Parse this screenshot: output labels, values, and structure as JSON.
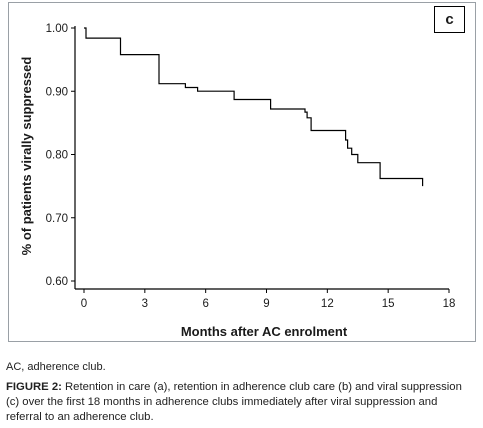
{
  "panel_label": "c",
  "footnote": "AC, adherence club.",
  "caption": {
    "label": "FIGURE 2:",
    "text": " Retention in care (a), retention in adherence club care (b) and viral suppression (c) over the first 18 months in adherence clubs immediately after viral suppression and referral to an adherence club."
  },
  "chart_data": {
    "type": "line",
    "subtype": "step",
    "xlabel": "Months after AC enrolment",
    "ylabel": "% of patients virally suppressed",
    "xlim": [
      0,
      18
    ],
    "ylim": [
      0.6,
      1.0
    ],
    "x_ticks": [
      0,
      3,
      6,
      9,
      12,
      15,
      18
    ],
    "y_ticks": [
      0.6,
      0.7,
      0.8,
      0.9,
      1.0
    ],
    "x_tick_labels": [
      "0",
      "3",
      "6",
      "9",
      "12",
      "15",
      "18"
    ],
    "y_tick_labels": [
      "0.60",
      "0.70",
      "0.80",
      "0.90",
      "1.00"
    ],
    "grid": false,
    "series": [
      {
        "x": [
          0,
          0.1,
          1.8,
          3.7,
          5.0,
          5.6,
          7.4,
          9.2,
          10.9,
          11.0,
          11.2,
          12.9,
          13.0,
          13.2,
          13.5,
          14.6,
          16.7
        ],
        "y": [
          1.0,
          0.984,
          0.958,
          0.912,
          0.906,
          0.9,
          0.887,
          0.872,
          0.867,
          0.858,
          0.838,
          0.823,
          0.81,
          0.8,
          0.787,
          0.762,
          0.75
        ]
      }
    ]
  }
}
